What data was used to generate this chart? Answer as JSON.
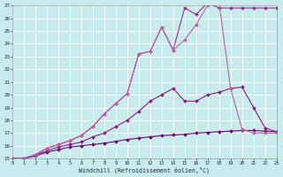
{
  "line1_x": [
    0,
    1,
    2,
    3,
    4,
    5,
    6,
    7,
    8,
    9,
    10,
    11,
    12,
    13,
    14,
    15,
    16,
    17,
    18,
    19,
    20,
    21,
    22,
    23
  ],
  "line1_y": [
    15,
    15,
    15.2,
    15.5,
    15.7,
    15.9,
    16.0,
    16.1,
    16.2,
    16.35,
    16.5,
    16.6,
    16.7,
    16.8,
    16.85,
    16.9,
    17.0,
    17.05,
    17.1,
    17.15,
    17.2,
    17.2,
    17.15,
    17.1
  ],
  "line2_x": [
    0,
    1,
    2,
    3,
    4,
    5,
    6,
    7,
    8,
    9,
    10,
    11,
    12,
    13,
    14,
    15,
    16,
    17,
    18,
    19,
    20,
    21,
    22,
    23
  ],
  "line2_y": [
    15,
    15,
    15.3,
    15.6,
    15.9,
    16.1,
    16.3,
    16.7,
    17.0,
    17.5,
    18.0,
    18.7,
    19.5,
    20.0,
    20.5,
    19.5,
    19.5,
    20.0,
    20.2,
    20.5,
    20.6,
    19.0,
    17.4,
    17.1
  ],
  "line3_x": [
    0,
    1,
    2,
    3,
    4,
    5,
    6,
    7,
    8,
    9,
    10,
    11,
    12,
    13,
    14,
    15,
    16,
    17,
    18,
    19,
    20,
    21,
    22,
    23
  ],
  "line3_y": [
    15,
    15,
    15.3,
    15.8,
    16.1,
    16.4,
    16.8,
    17.5,
    18.5,
    19.3,
    20.1,
    23.2,
    23.4,
    25.3,
    23.5,
    26.8,
    26.3,
    27.2,
    26.8,
    26.8,
    26.8,
    26.8,
    26.8,
    26.8
  ],
  "line4_x": [
    0,
    1,
    2,
    3,
    4,
    5,
    6,
    7,
    8,
    9,
    10,
    11,
    12,
    13,
    14,
    15,
    16,
    17,
    18,
    19,
    20,
    21,
    22,
    23
  ],
  "line4_y": [
    15,
    15,
    15.3,
    15.8,
    16.1,
    16.4,
    16.8,
    17.5,
    18.5,
    19.3,
    20.1,
    23.2,
    23.4,
    25.3,
    23.5,
    24.3,
    25.5,
    27.0,
    27.2,
    20.5,
    17.3,
    17.0,
    17.0,
    17.0
  ],
  "colors": [
    "#6B0080",
    "#8B1A8B",
    "#9B2D9B",
    "#C060A0"
  ],
  "xlim": [
    0,
    23
  ],
  "ylim": [
    15,
    27
  ],
  "yticks": [
    15,
    16,
    17,
    18,
    19,
    20,
    21,
    22,
    23,
    24,
    25,
    26,
    27
  ],
  "xticks": [
    0,
    1,
    2,
    3,
    4,
    5,
    6,
    7,
    8,
    9,
    10,
    11,
    12,
    13,
    14,
    15,
    16,
    17,
    18,
    19,
    20,
    21,
    22,
    23
  ],
  "xlabel": "Windchill (Refroidissement éolien,°C)",
  "bg_color": "#c8ecec",
  "grid_color": "#ffffff",
  "markersize": 2.0,
  "linewidth": 0.8
}
